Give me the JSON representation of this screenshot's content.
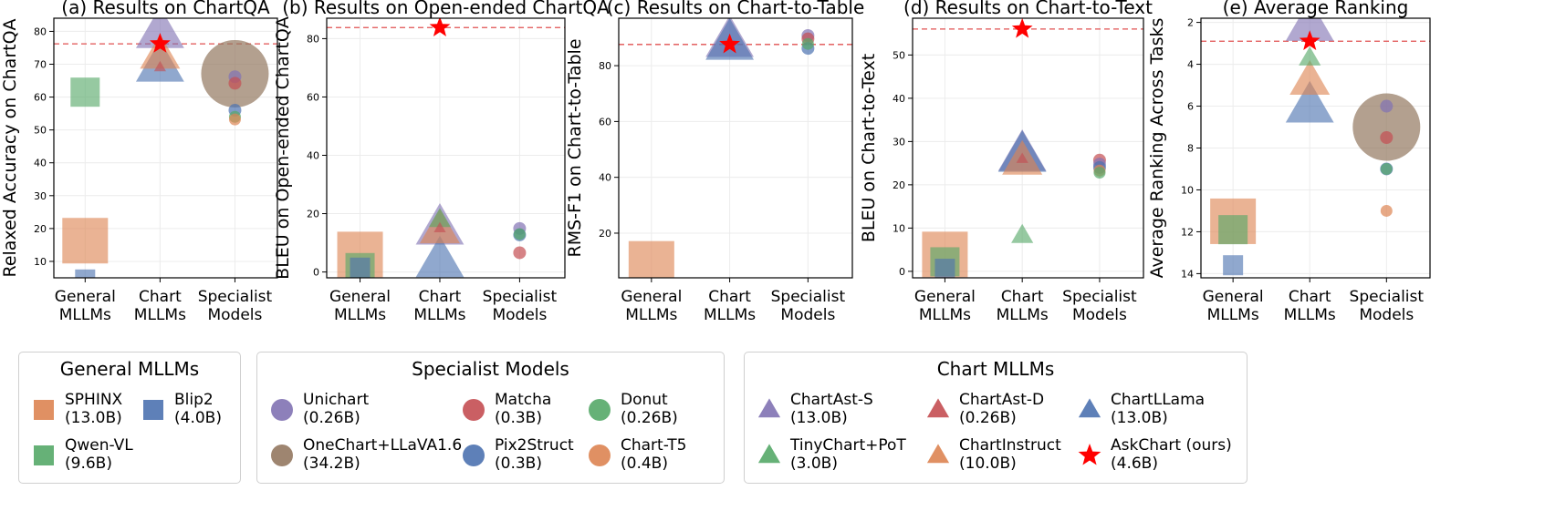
{
  "colors": {
    "purple": "#8172B3",
    "red": "#C44E52",
    "blue": "#4C72B0",
    "green": "#55A868",
    "orange": "#DD8452",
    "brown": "#937860",
    "star": "#FF0000",
    "refline": "#E05050"
  },
  "chart_data": [
    {
      "type": "scatter",
      "title": "(a) Results on ChartQA",
      "ylabel": "Relaxed Accuracy on ChartQA",
      "xlabel": "",
      "categories": [
        "General\nMLLMs",
        "Chart\nMLLMs",
        "Specialist\nModels"
      ],
      "ylim": [
        5,
        84
      ],
      "yticks": [
        10,
        20,
        30,
        40,
        50,
        60,
        70,
        80
      ],
      "invert": false,
      "reference": 76.2,
      "grid": true,
      "points": [
        {
          "model": "SPHINX",
          "cat": 0,
          "y": 16.3
        },
        {
          "model": "Blip2",
          "cat": 0,
          "y": 4.5
        },
        {
          "model": "Qwen-VL",
          "cat": 0,
          "y": 61.5
        },
        {
          "model": "ChartAst-S",
          "cat": 1,
          "y": 79.9
        },
        {
          "model": "ChartLLama",
          "cat": 1,
          "y": 69.7
        },
        {
          "model": "ChartInstruct",
          "cat": 1,
          "y": 72.8
        },
        {
          "model": "ChartAst-D",
          "cat": 1,
          "y": 69.1
        },
        {
          "model": "AskChart (ours)",
          "cat": 1,
          "y": 76.2
        },
        {
          "model": "OneChart+LLaVA1.6",
          "cat": 2,
          "y": 67.1
        },
        {
          "model": "Unichart",
          "cat": 2,
          "y": 66.2
        },
        {
          "model": "Matcha",
          "cat": 2,
          "y": 64.2
        },
        {
          "model": "Pix2Struct",
          "cat": 2,
          "y": 56.0
        },
        {
          "model": "Donut",
          "cat": 2,
          "y": 54.0
        },
        {
          "model": "Chart-T5",
          "cat": 2,
          "y": 53.2
        }
      ]
    },
    {
      "type": "scatter",
      "title": "(b) Results on Open-ended ChartQA",
      "ylabel": "BLEU on Open-ended ChartQA",
      "xlabel": "",
      "categories": [
        "General\nMLLMs",
        "Chart\nMLLMs",
        "Specialist\nModels"
      ],
      "ylim": [
        -2,
        87
      ],
      "yticks": [
        0,
        20,
        40,
        60,
        80
      ],
      "invert": false,
      "reference": 83.8,
      "grid": true,
      "points": [
        {
          "model": "SPHINX",
          "cat": 0,
          "y": 6.0
        },
        {
          "model": "Qwen-VL",
          "cat": 0,
          "y": 1.5
        },
        {
          "model": "Blip2",
          "cat": 0,
          "y": 1.5
        },
        {
          "model": "TinyChart+PoT",
          "cat": 1,
          "y": 18.0
        },
        {
          "model": "ChartAst-S",
          "cat": 1,
          "y": 15.0
        },
        {
          "model": "ChartInstruct",
          "cat": 1,
          "y": 14.5
        },
        {
          "model": "ChartAst-D",
          "cat": 1,
          "y": 15.0
        },
        {
          "model": "ChartLLama",
          "cat": 1,
          "y": 3.8
        },
        {
          "model": "AskChart (ours)",
          "cat": 1,
          "y": 83.8
        },
        {
          "model": "Unichart",
          "cat": 2,
          "y": 14.9
        },
        {
          "model": "Donut",
          "cat": 2,
          "y": 13.0
        },
        {
          "model": "Pix2Struct",
          "cat": 2,
          "y": 12.7
        },
        {
          "model": "Matcha",
          "cat": 2,
          "y": 6.6
        }
      ]
    },
    {
      "type": "scatter",
      "title": "(c) Results on Chart-to-Table",
      "ylabel": "RMS-F1 on Chart-to-Table",
      "xlabel": "",
      "categories": [
        "General\nMLLMs",
        "Chart\nMLLMs",
        "Specialist\nModels"
      ],
      "ylim": [
        4,
        97
      ],
      "yticks": [
        20,
        40,
        60,
        80
      ],
      "invert": false,
      "reference": 87.6,
      "grid": true,
      "points": [
        {
          "model": "SPHINX",
          "cat": 0,
          "y": 9.0
        },
        {
          "model": "ChartAst-S",
          "cat": 1,
          "y": 89.0
        },
        {
          "model": "ChartLLama",
          "cat": 1,
          "y": 88.0
        },
        {
          "model": "AskChart (ours)",
          "cat": 1,
          "y": 87.6
        },
        {
          "model": "Unichart",
          "cat": 2,
          "y": 90.8
        },
        {
          "model": "Matcha",
          "cat": 2,
          "y": 89.6
        },
        {
          "model": "Donut",
          "cat": 2,
          "y": 87.8
        },
        {
          "model": "Pix2Struct",
          "cat": 2,
          "y": 86.2
        }
      ]
    },
    {
      "type": "scatter",
      "title": "(d) Results on Chart-to-Text",
      "ylabel": "BLEU on Chart-to-Text",
      "xlabel": "",
      "categories": [
        "General\nMLLMs",
        "Chart\nMLLMs",
        "Specialist\nModels"
      ],
      "ylim": [
        -1.5,
        58.5
      ],
      "yticks": [
        0,
        10,
        20,
        30,
        40,
        50
      ],
      "invert": false,
      "reference": 56.0,
      "grid": true,
      "points": [
        {
          "model": "SPHINX",
          "cat": 0,
          "y": 3.9
        },
        {
          "model": "Qwen-VL",
          "cat": 0,
          "y": 2.2
        },
        {
          "model": "Blip2",
          "cat": 0,
          "y": 0.6
        },
        {
          "model": "ChartAst-S",
          "cat": 1,
          "y": 27.0
        },
        {
          "model": "ChartInstruct",
          "cat": 1,
          "y": 25.5
        },
        {
          "model": "ChartLLama",
          "cat": 1,
          "y": 26.8
        },
        {
          "model": "ChartAst-D",
          "cat": 1,
          "y": 26.0
        },
        {
          "model": "TinyChart+PoT",
          "cat": 1,
          "y": 8.3
        },
        {
          "model": "AskChart (ours)",
          "cat": 1,
          "y": 56.0
        },
        {
          "model": "Matcha",
          "cat": 2,
          "y": 25.7
        },
        {
          "model": "Unichart",
          "cat": 2,
          "y": 24.8
        },
        {
          "model": "Pix2Struct",
          "cat": 2,
          "y": 24.0
        },
        {
          "model": "Chart-T5",
          "cat": 2,
          "y": 23.3
        },
        {
          "model": "Donut",
          "cat": 2,
          "y": 22.8
        }
      ]
    },
    {
      "type": "scatter",
      "title": "(e) Average Ranking",
      "ylabel": "Average Ranking Across Tasks",
      "xlabel": "",
      "categories": [
        "General\nMLLMs",
        "Chart\nMLLMs",
        "Specialist\nModels"
      ],
      "ylim": [
        1.8,
        14.2
      ],
      "yticks": [
        2,
        4,
        6,
        8,
        10,
        12,
        14
      ],
      "invert": true,
      "reference": 2.9,
      "grid": true,
      "points": [
        {
          "model": "SPHINX",
          "cat": 0,
          "y": 11.5
        },
        {
          "model": "Qwen-VL",
          "cat": 0,
          "y": 11.9
        },
        {
          "model": "Blip2",
          "cat": 0,
          "y": 13.6
        },
        {
          "model": "ChartAst-S",
          "cat": 1,
          "y": 2.1
        },
        {
          "model": "TinyChart+PoT",
          "cat": 1,
          "y": 3.7
        },
        {
          "model": "ChartInstruct",
          "cat": 1,
          "y": 4.8
        },
        {
          "model": "ChartLLama",
          "cat": 1,
          "y": 6.0
        },
        {
          "model": "AskChart (ours)",
          "cat": 1,
          "y": 2.9
        },
        {
          "model": "OneChart+LLaVA1.6",
          "cat": 2,
          "y": 7.0
        },
        {
          "model": "Unichart",
          "cat": 2,
          "y": 6.0
        },
        {
          "model": "Matcha",
          "cat": 2,
          "y": 7.5
        },
        {
          "model": "Pix2Struct",
          "cat": 2,
          "y": 9.0
        },
        {
          "model": "Donut",
          "cat": 2,
          "y": 9.0
        },
        {
          "model": "Chart-T5",
          "cat": 2,
          "y": 11.0
        }
      ]
    }
  ],
  "models": {
    "SPHINX": {
      "group": "general",
      "shape": "square",
      "color": "orange",
      "size": "13.0B"
    },
    "Blip2": {
      "group": "general",
      "shape": "square",
      "color": "blue",
      "size": "4.0B"
    },
    "Qwen-VL": {
      "group": "general",
      "shape": "square",
      "color": "green",
      "size": "9.6B"
    },
    "Unichart": {
      "group": "specialist",
      "shape": "circle",
      "color": "purple",
      "size": "0.26B"
    },
    "Matcha": {
      "group": "specialist",
      "shape": "circle",
      "color": "red",
      "size": "0.3B"
    },
    "Donut": {
      "group": "specialist",
      "shape": "circle",
      "color": "green",
      "size": "0.26B"
    },
    "OneChart+LLaVA1.6": {
      "group": "specialist",
      "shape": "circle",
      "color": "brown",
      "size": "34.2B"
    },
    "Pix2Struct": {
      "group": "specialist",
      "shape": "circle",
      "color": "blue",
      "size": "0.3B"
    },
    "Chart-T5": {
      "group": "specialist",
      "shape": "circle",
      "color": "orange",
      "size": "0.4B"
    },
    "ChartAst-S": {
      "group": "chart",
      "shape": "triangle",
      "color": "purple",
      "size": "13.0B"
    },
    "ChartAst-D": {
      "group": "chart",
      "shape": "triangle",
      "color": "red",
      "size": "0.26B"
    },
    "ChartLLama": {
      "group": "chart",
      "shape": "triangle",
      "color": "blue",
      "size": "13.0B"
    },
    "TinyChart+PoT": {
      "group": "chart",
      "shape": "triangle",
      "color": "green",
      "size": "3.0B"
    },
    "ChartInstruct": {
      "group": "chart",
      "shape": "triangle",
      "color": "orange",
      "size": "10.0B"
    },
    "AskChart (ours)": {
      "group": "chart",
      "shape": "star",
      "color": "star",
      "size": "4.6B"
    }
  },
  "legends": {
    "general": {
      "title": "General MLLMs",
      "items": [
        {
          "name": "SPHINX",
          "size": "(13.0B)",
          "shape": "square",
          "color": "orange"
        },
        {
          "name": "Blip2",
          "size": "(4.0B)",
          "shape": "square",
          "color": "blue"
        },
        {
          "name": "Qwen-VL",
          "size": "(9.6B)",
          "shape": "square",
          "color": "green"
        }
      ]
    },
    "specialist": {
      "title": "Specialist Models",
      "items": [
        {
          "name": "Unichart",
          "size": "(0.26B)",
          "shape": "circle",
          "color": "purple"
        },
        {
          "name": "Matcha",
          "size": "(0.3B)",
          "shape": "circle",
          "color": "red"
        },
        {
          "name": "Donut",
          "size": "(0.26B)",
          "shape": "circle",
          "color": "green"
        },
        {
          "name": "OneChart+LLaVA1.6",
          "size": "(34.2B)",
          "shape": "circle",
          "color": "brown"
        },
        {
          "name": "Pix2Struct",
          "size": "(0.3B)",
          "shape": "circle",
          "color": "blue"
        },
        {
          "name": "Chart-T5",
          "size": "(0.4B)",
          "shape": "circle",
          "color": "orange"
        }
      ]
    },
    "chart": {
      "title": "Chart MLLMs",
      "items": [
        {
          "name": "ChartAst-S",
          "size": "(13.0B)",
          "shape": "triangle",
          "color": "purple"
        },
        {
          "name": "ChartAst-D",
          "size": "(0.26B)",
          "shape": "triangle",
          "color": "red"
        },
        {
          "name": "ChartLLama",
          "size": "(13.0B)",
          "shape": "triangle",
          "color": "blue"
        },
        {
          "name": "TinyChart+PoT",
          "size": "(3.0B)",
          "shape": "triangle",
          "color": "green"
        },
        {
          "name": "ChartInstruct",
          "size": "(10.0B)",
          "shape": "triangle",
          "color": "orange"
        },
        {
          "name": "AskChart (ours)",
          "size": "(4.6B)",
          "shape": "star",
          "color": "star"
        }
      ]
    }
  }
}
